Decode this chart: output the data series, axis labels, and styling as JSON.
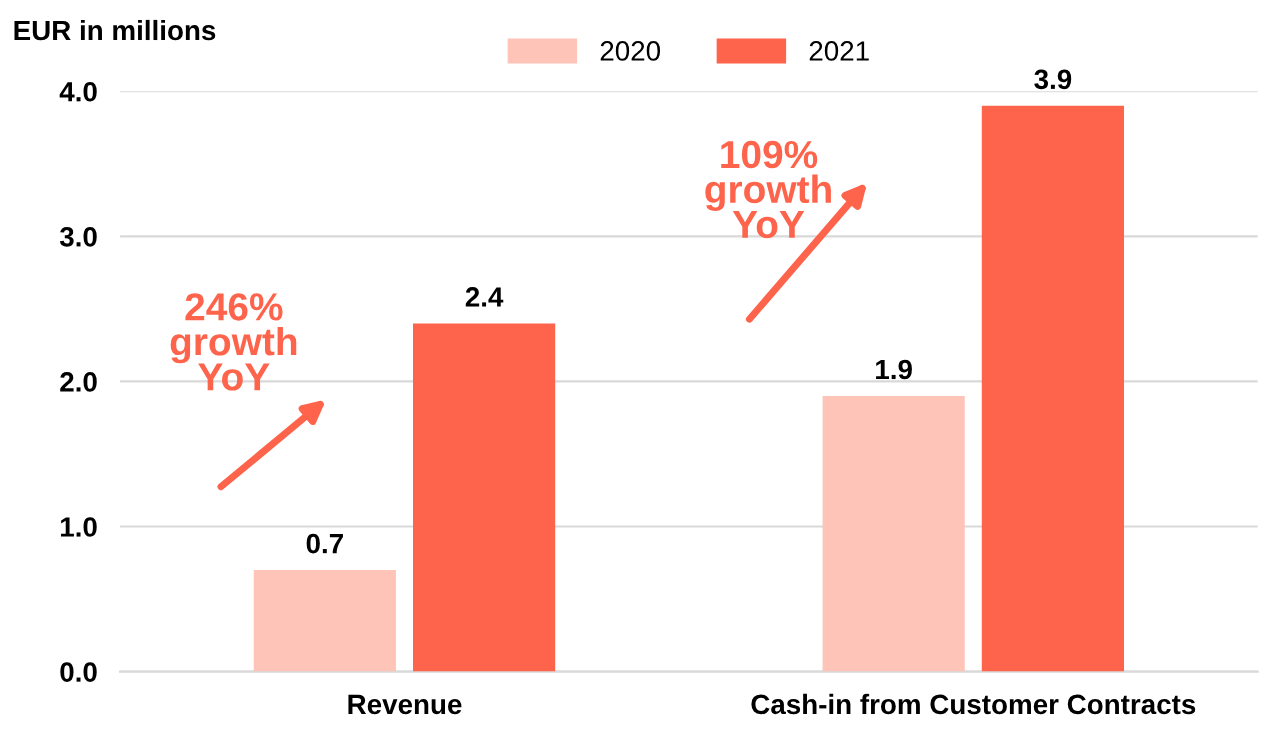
{
  "chart_data": {
    "type": "bar",
    "ylabel": "EUR in millions",
    "categories": [
      "Revenue",
      "Cash-in from Customer Contracts"
    ],
    "series": [
      {
        "name": "2020",
        "color": "#ffc4b8",
        "values": [
          0.7,
          1.9
        ]
      },
      {
        "name": "2021",
        "color": "#fe634c",
        "values": [
          2.4,
          3.9
        ]
      }
    ],
    "ylim": [
      0,
      4.0
    ],
    "yticks": [
      {
        "value": 0,
        "label": "0.0"
      },
      {
        "value": 1,
        "label": "1.0"
      },
      {
        "value": 2,
        "label": "2.0"
      },
      {
        "value": 3,
        "label": "3.0"
      },
      {
        "value": 4,
        "label": "4.0"
      }
    ],
    "grid": "y",
    "legend": "top",
    "data_labels": true,
    "annotations": [
      "246%\ngrowth\nYoY",
      "109%\ngrowth\nYoY"
    ]
  }
}
